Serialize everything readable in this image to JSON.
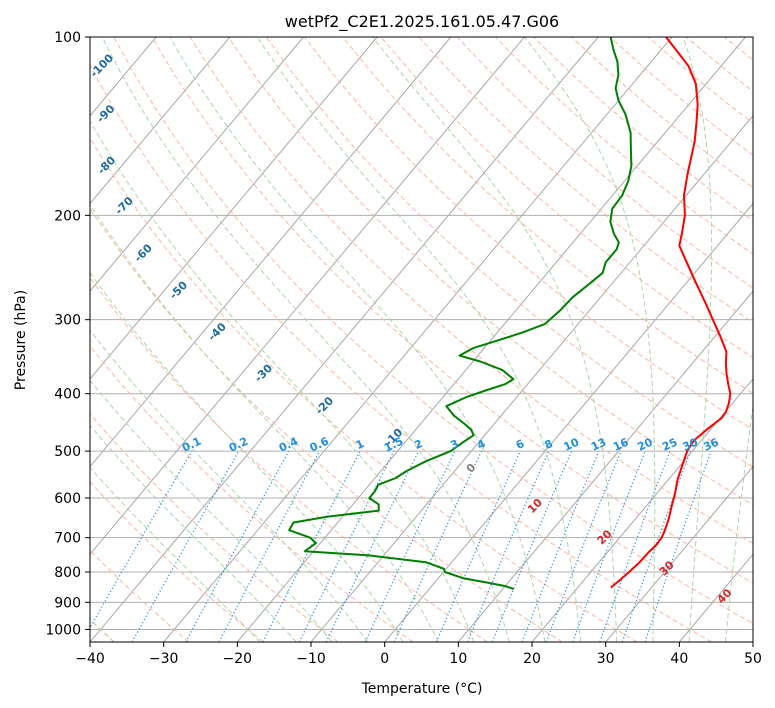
{
  "chart_data": {
    "type": "line",
    "title": "wetPf2_C2E1.2025.161.05.47.G06",
    "xlabel": "Temperature (°C)",
    "ylabel": "Pressure (hPa)",
    "xlim": [
      -40,
      50
    ],
    "ylim": [
      1050,
      100
    ],
    "y_scale": "log",
    "grid": true,
    "x_ticks": [
      "−40",
      "−30",
      "−20",
      "−10",
      "0",
      "10",
      "20",
      "30",
      "40",
      "50"
    ],
    "y_ticks": [
      "100",
      "200",
      "300",
      "400",
      "500",
      "600",
      "700",
      "800",
      "900",
      "1000"
    ],
    "isotherm_labels": [
      {
        "text": "-100",
        "p": 112,
        "t": -104
      },
      {
        "text": "-90",
        "p": 135,
        "t": -98
      },
      {
        "text": "-80",
        "p": 165,
        "t": -92
      },
      {
        "text": "-70",
        "p": 193,
        "t": -85
      },
      {
        "text": "-60",
        "p": 232,
        "t": -77
      },
      {
        "text": "-50",
        "p": 268,
        "t": -68
      },
      {
        "text": "-40",
        "p": 315,
        "t": -58
      },
      {
        "text": "-30",
        "p": 370,
        "t": -47
      },
      {
        "text": "-20",
        "p": 420,
        "t": -35
      },
      {
        "text": "-10",
        "p": 475,
        "t": -22
      },
      {
        "text": "0",
        "p": 535,
        "t": -8
      },
      {
        "text": "10",
        "p": 620,
        "t": 5
      },
      {
        "text": "20",
        "p": 700,
        "t": 18
      },
      {
        "text": "30",
        "p": 790,
        "t": 30
      },
      {
        "text": "40",
        "p": 880,
        "t": 41
      }
    ],
    "mixing_ratio_labels": [
      "0.1",
      "0.2",
      "0.4",
      "0.6",
      "1",
      "1.5",
      "2",
      "3",
      "4",
      "6",
      "8",
      "10",
      "13",
      "16",
      "20",
      "25",
      "30",
      "36"
    ],
    "series": [
      {
        "kind": "temperature",
        "color": "#ff0000",
        "points": [
          [
            850,
            24.5
          ],
          [
            830,
            24.8
          ],
          [
            800,
            25.2
          ],
          [
            770,
            25.5
          ],
          [
            740,
            25.6
          ],
          [
            720,
            25.8
          ],
          [
            700,
            25.7
          ],
          [
            680,
            25.3
          ],
          [
            650,
            24.5
          ],
          [
            620,
            23.5
          ],
          [
            590,
            22.5
          ],
          [
            560,
            21.3
          ],
          [
            530,
            20.3
          ],
          [
            500,
            19.3
          ],
          [
            480,
            19.0
          ],
          [
            460,
            19.5
          ],
          [
            440,
            20.2
          ],
          [
            430,
            20.1
          ],
          [
            415,
            19.5
          ],
          [
            400,
            18.6
          ],
          [
            385,
            17.2
          ],
          [
            370,
            15.8
          ],
          [
            355,
            14.5
          ],
          [
            340,
            13.3
          ],
          [
            320,
            10.7
          ],
          [
            300,
            7.8
          ],
          [
            280,
            4.7
          ],
          [
            260,
            1.3
          ],
          [
            240,
            -2.3
          ],
          [
            225,
            -5.2
          ],
          [
            215,
            -6.2
          ],
          [
            200,
            -7.9
          ],
          [
            185,
            -10.3
          ],
          [
            170,
            -12.3
          ],
          [
            160,
            -13.6
          ],
          [
            150,
            -15.0
          ],
          [
            140,
            -16.8
          ],
          [
            130,
            -18.8
          ],
          [
            120,
            -21.4
          ],
          [
            112,
            -24.4
          ],
          [
            106,
            -27.5
          ],
          [
            100,
            -30.8
          ]
        ]
      },
      {
        "kind": "dewpoint",
        "color": "#008000",
        "points": [
          [
            855,
            11.5
          ],
          [
            845,
            10.0
          ],
          [
            835,
            7.5
          ],
          [
            820,
            3.5
          ],
          [
            800,
            0.2
          ],
          [
            790,
            -0.3
          ],
          [
            770,
            -3.5
          ],
          [
            750,
            -12.0
          ],
          [
            738,
            -21.2
          ],
          [
            730,
            -21.0
          ],
          [
            715,
            -20.6
          ],
          [
            700,
            -22.0
          ],
          [
            680,
            -25.7
          ],
          [
            660,
            -26.0
          ],
          [
            645,
            -22.0
          ],
          [
            630,
            -15.8
          ],
          [
            615,
            -16.5
          ],
          [
            600,
            -18.5
          ],
          [
            585,
            -18.5
          ],
          [
            570,
            -18.8
          ],
          [
            555,
            -17.2
          ],
          [
            540,
            -16.5
          ],
          [
            520,
            -15.0
          ],
          [
            500,
            -12.8
          ],
          [
            480,
            -12.0
          ],
          [
            470,
            -11.5
          ],
          [
            460,
            -12.5
          ],
          [
            450,
            -14.0
          ],
          [
            435,
            -16.5
          ],
          [
            420,
            -18.5
          ],
          [
            405,
            -16.8
          ],
          [
            395,
            -15.0
          ],
          [
            385,
            -13.0
          ],
          [
            378,
            -12.5
          ],
          [
            365,
            -15.0
          ],
          [
            353,
            -19.0
          ],
          [
            345,
            -22.5
          ],
          [
            335,
            -21.5
          ],
          [
            325,
            -19.0
          ],
          [
            315,
            -16.5
          ],
          [
            305,
            -14.5
          ],
          [
            290,
            -14.0
          ],
          [
            275,
            -13.8
          ],
          [
            260,
            -13.0
          ],
          [
            250,
            -12.5
          ],
          [
            240,
            -13.3
          ],
          [
            228,
            -13.3
          ],
          [
            222,
            -13.8
          ],
          [
            215,
            -15.4
          ],
          [
            205,
            -17.3
          ],
          [
            195,
            -18.5
          ],
          [
            185,
            -18.7
          ],
          [
            175,
            -19.5
          ],
          [
            165,
            -20.8
          ],
          [
            155,
            -22.7
          ],
          [
            145,
            -24.7
          ],
          [
            135,
            -27.5
          ],
          [
            128,
            -30.0
          ],
          [
            122,
            -31.8
          ],
          [
            116,
            -32.9
          ],
          [
            110,
            -34.6
          ],
          [
            105,
            -36.5
          ],
          [
            100,
            -38.3
          ]
        ]
      }
    ]
  }
}
